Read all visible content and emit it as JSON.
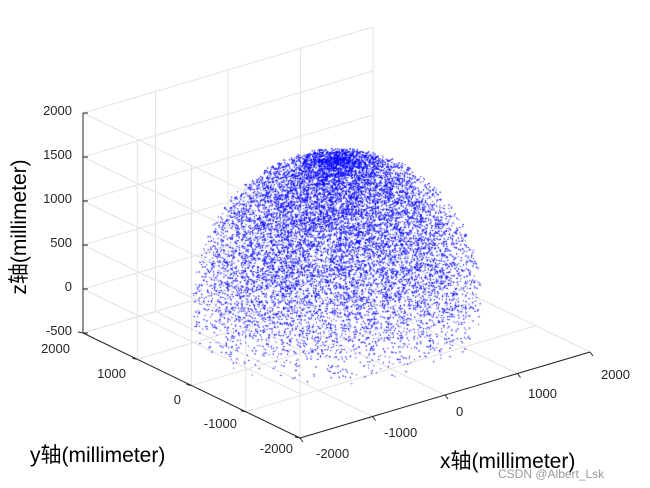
{
  "chart_data": {
    "type": "scatter",
    "dimensions": 3,
    "xlabel": "x轴(millimeter)",
    "ylabel": "y轴(millimeter)",
    "zlabel": "z轴(millimeter)",
    "xlim": [
      -2000,
      2000
    ],
    "ylim": [
      -2000,
      2000
    ],
    "zlim": [
      -500,
      2000
    ],
    "xticks": [
      "-2000",
      "-1000",
      "0",
      "1000",
      "2000"
    ],
    "yticks": [
      "-2000",
      "-1000",
      "0",
      "1000",
      "2000"
    ],
    "zticks": [
      "-500",
      "0",
      "500",
      "1000",
      "1500",
      "2000"
    ],
    "grid": true,
    "marker_color": "#0000ff",
    "series": [
      {
        "shape": "upper hemisphere point cloud",
        "center": [
          0,
          0,
          0
        ],
        "radius": 1600,
        "z_range": [
          -400,
          1600
        ],
        "approx_points": 20000
      }
    ]
  },
  "watermark": "CSDN @Albert_Lsk"
}
